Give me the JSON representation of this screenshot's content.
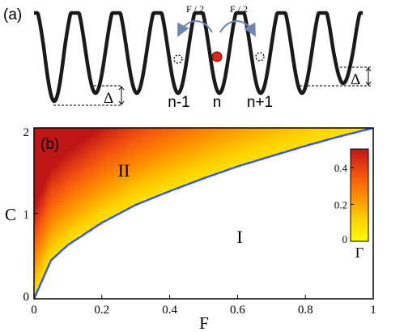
{
  "panel_a": {
    "label": "(a)",
    "delta_left": "Δ",
    "delta_right": "Δ",
    "hop_left": "F / 2",
    "hop_right": "F / 2",
    "site_labels": [
      "n-1",
      "n",
      "n+1"
    ],
    "colors": {
      "curve": "#1a1a1a",
      "arrow": "#6b86b3",
      "particle": "#e0281a"
    }
  },
  "panel_b": {
    "label": "(b)",
    "region_upper": "II",
    "region_lower": "I",
    "boundary_color": "#3b5bd6",
    "colormap": [
      "#fffb00",
      "#ffd000",
      "#ff8a00",
      "#f24d10",
      "#c01515"
    ],
    "colorbar": {
      "ticks": [
        "0.4",
        "0.2",
        "0"
      ],
      "tick_values": [
        0.4,
        0.2,
        0
      ],
      "range": [
        0,
        0.5
      ],
      "label": "Γ"
    }
  },
  "chart_data": {
    "type": "heatmap",
    "xlabel": "F",
    "ylabel": "C",
    "xlim": [
      0,
      1
    ],
    "ylim": [
      0,
      2
    ],
    "x_ticks": [
      "0",
      "0.2",
      "0.4",
      "0.6",
      "0.8",
      "1"
    ],
    "x_tick_values": [
      0,
      0.2,
      0.4,
      0.6,
      0.8,
      1
    ],
    "y_ticks": [
      "2",
      "1",
      "0"
    ],
    "y_tick_values": [
      2,
      1,
      0
    ],
    "boundary": {
      "x": [
        0,
        0.05,
        0.1,
        0.2,
        0.3,
        0.4,
        0.5,
        0.6,
        0.7,
        0.8,
        0.9,
        1.0
      ],
      "y": [
        0,
        0.45,
        0.63,
        0.89,
        1.1,
        1.26,
        1.41,
        1.55,
        1.67,
        1.79,
        1.9,
        2.0
      ]
    }
  }
}
